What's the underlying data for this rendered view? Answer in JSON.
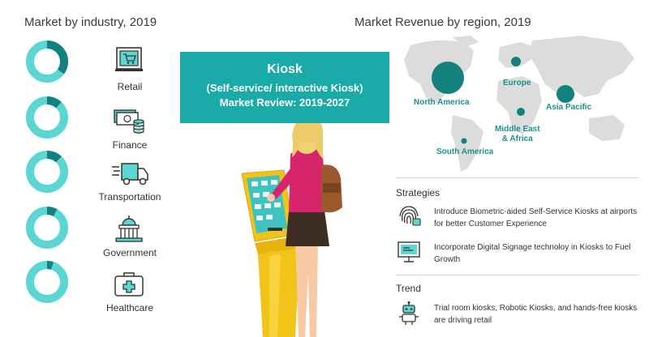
{
  "left": {
    "title": "Market by industry, 2019",
    "industries": [
      {
        "label": "Retail",
        "icon": "retail-icon",
        "share": 0.35
      },
      {
        "label": "Finance",
        "icon": "finance-icon",
        "share": 0.12
      },
      {
        "label": "Transportation",
        "icon": "transportation-icon",
        "share": 0.12
      },
      {
        "label": "Government",
        "icon": "government-icon",
        "share": 0.08
      },
      {
        "label": "Healthcare",
        "icon": "healthcare-icon",
        "share": 0.05
      }
    ]
  },
  "banner": {
    "title": "Kiosk",
    "subtitle": "(Self-service/ interactive Kiosk)",
    "period": "Market Review: 2019-2027"
  },
  "right": {
    "title": "Market Revenue by region, 2019",
    "regions": [
      {
        "label": "North America"
      },
      {
        "label": "Europe"
      },
      {
        "label": "Asia Pacific"
      },
      {
        "label": "Middle East\n& Africa"
      },
      {
        "label": "South America"
      }
    ]
  },
  "strategies": {
    "title": "Strategies",
    "items": [
      {
        "icon": "fingerprint-icon",
        "text": "Introduce Biometric-aided Self-Service Kiosks at airports for better Customer Experience"
      },
      {
        "icon": "digital-signage-icon",
        "text": "Incorporate Digital Signage technoloy in Kiosks to Fuel Growth"
      }
    ]
  },
  "trend": {
    "title": "Trend",
    "items": [
      {
        "icon": "robot-icon",
        "text": "Trial room kiosks, Robotic Kiosks,  and hands-free kiosks are driving retail"
      }
    ]
  },
  "colors": {
    "teal": "#1aaaa7",
    "teal_light": "#5bd6d2",
    "teal_dark": "#13827f",
    "map": "#dcdcdc"
  }
}
